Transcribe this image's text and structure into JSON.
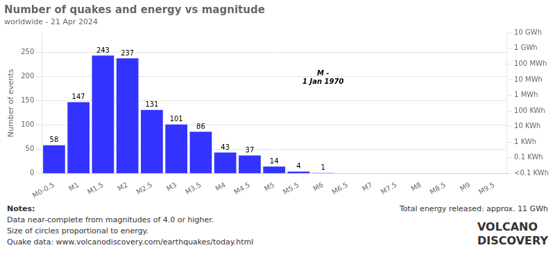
{
  "chart_data": {
    "type": "bar",
    "title": "Number of quakes and energy vs magnitude",
    "subtitle": "worldwide - 21 Apr 2024",
    "categories": [
      "M0-0.5",
      "M1",
      "M1.5",
      "M2",
      "M2.5",
      "M3",
      "M3.5",
      "M4",
      "M4.5",
      "M5",
      "M5.5",
      "M6",
      "M6.5",
      "M7",
      "M7.5",
      "M8",
      "M8.5",
      "M9",
      "M9.5"
    ],
    "values": [
      58,
      147,
      243,
      237,
      131,
      101,
      86,
      43,
      37,
      14,
      4,
      1,
      0,
      0,
      0,
      0,
      0,
      0,
      0
    ],
    "value_labels": [
      "58",
      "147",
      "243",
      "237",
      "131",
      "101",
      "86",
      "43",
      "37",
      "14",
      "4",
      "1",
      null,
      null,
      null,
      null,
      null,
      null,
      null
    ],
    "data_labels": true,
    "color": "#3333ff",
    "ylabel": "Number of events",
    "ylim": [
      0,
      290
    ],
    "yticks": [
      0,
      50,
      100,
      150,
      200,
      250
    ],
    "y2lim": [
      0,
      1
    ],
    "y2ticks": [
      {
        "value": 1.0,
        "label": "10 GWh"
      },
      {
        "value": 0.8888888888888888,
        "label": "1 GWh"
      },
      {
        "value": 0.7777777777777778,
        "label": "100 MWh"
      },
      {
        "value": 0.6666666666666666,
        "label": "10 MWh"
      },
      {
        "value": 0.5555555555555556,
        "label": "1 MWh"
      },
      {
        "value": 0.4444444444444444,
        "label": "100 KWh"
      },
      {
        "value": 0.3333333333333333,
        "label": "10 KWh"
      },
      {
        "value": 0.2222222222222222,
        "label": "1 KWh"
      },
      {
        "value": 0.1111111111111111,
        "label": "0.1 KWh"
      },
      {
        "value": 0.0,
        "label": "<0.1 KWh"
      }
    ],
    "grid": true,
    "annotations": [
      {
        "text": "M -\n1 Jan 1970",
        "category": "M6"
      }
    ],
    "notes": [
      "Notes:",
      "Data near-complete from magnitudes of 4.0 or higher.",
      "Size of circles proportional to energy.",
      "Quake data: www.volcanodiscovery.com/earthquakes/today.html"
    ],
    "energy_label": "Total energy released: approx. 11 GWh",
    "logo": [
      "VOLCANO",
      "DISCOVERY"
    ]
  }
}
